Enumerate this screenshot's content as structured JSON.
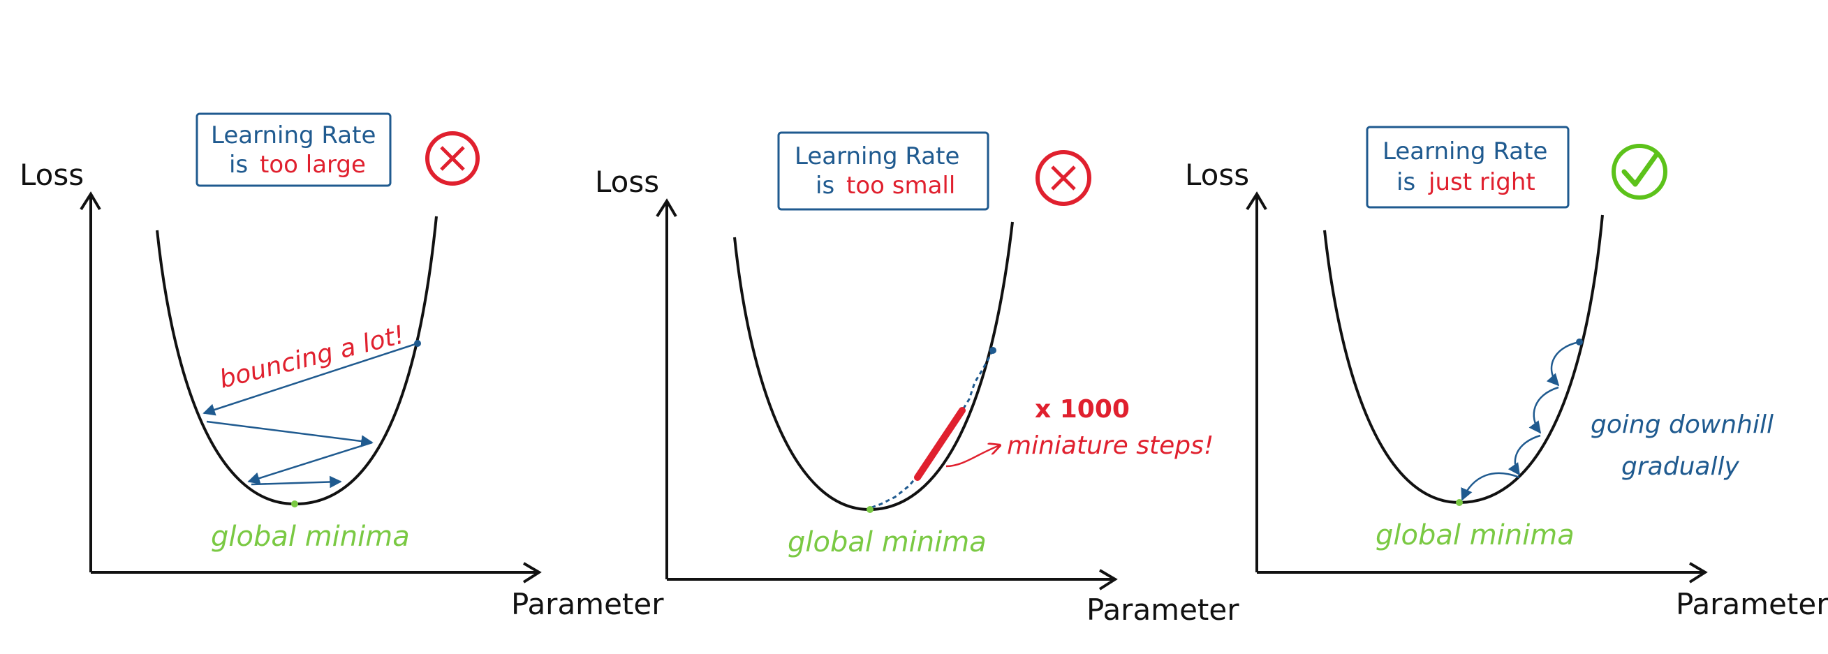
{
  "colors": {
    "ink": "#111111",
    "blue": "#1f5a8f",
    "red": "#e0202e",
    "green": "#7ac943",
    "check_green": "#5cc21a"
  },
  "panels": [
    {
      "y_axis_label": "Loss",
      "x_axis_label": "Parameter",
      "box_line1": "Learning Rate",
      "box_line2_prefix": "is",
      "box_line2_emph": "too large",
      "status_icon": "cross-icon",
      "note": "bouncing a lot!",
      "minima_label": "global minima"
    },
    {
      "y_axis_label": "Loss",
      "x_axis_label": "Parameter",
      "box_line1": "Learning Rate",
      "box_line2_prefix": "is",
      "box_line2_emph": "too small",
      "status_icon": "cross-icon",
      "note": "miniature steps!",
      "multiplier": "x 1000",
      "minima_label": "global minima"
    },
    {
      "y_axis_label": "Loss",
      "x_axis_label": "Parameter",
      "box_line1": "Learning Rate",
      "box_line2_prefix": "is",
      "box_line2_emph": "just right",
      "status_icon": "check-icon",
      "note_line1": "going downhill",
      "note_line2": "gradually",
      "minima_label": "global minima"
    }
  ]
}
